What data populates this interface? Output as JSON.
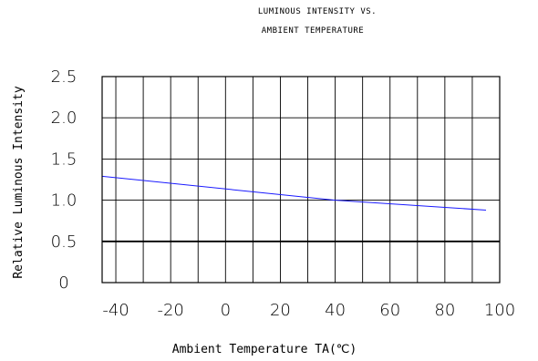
{
  "chart_data": {
    "type": "line",
    "title": "LUMINOUS INTENSITY VS.",
    "subtitle": "AMBIENT TEMPERATURE",
    "xlabel": "Ambient Temperature TA(℃)",
    "ylabel": "Relative Luminous Intensity",
    "xlim": [
      -45,
      100
    ],
    "ylim": [
      0,
      2.5
    ],
    "x_ticks": [
      -40,
      -20,
      0,
      20,
      40,
      60,
      80,
      100
    ],
    "x_tick_labels": [
      "-40",
      "-20",
      "0",
      "20",
      "40",
      "60",
      "80",
      "100"
    ],
    "y_ticks": [
      0,
      0.5,
      1.0,
      1.5,
      2.0,
      2.5
    ],
    "y_tick_labels": [
      "0",
      "0.5",
      "1.0",
      "1.5",
      "2.0",
      "2.5"
    ],
    "grid": true,
    "reference_line": {
      "y": 0.5,
      "color": "#000000"
    },
    "series": [
      {
        "color": "#1a1aff",
        "x": [
          -45,
          40,
          95
        ],
        "y": [
          1.29,
          1.0,
          0.88
        ]
      }
    ]
  }
}
